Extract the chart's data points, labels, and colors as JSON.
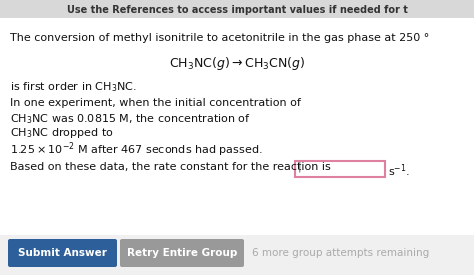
{
  "bg_color": "#ffffff",
  "header_text": "Use the References to access important values if needed for t",
  "header_bg": "#e8e8e8",
  "line1": "The conversion of methyl isonitrile to acetonitrile in the gas phase at 250 °",
  "line3": "is first order in CH₃NC.",
  "line4": "In one experiment, when the initial concentration of",
  "line5": "CH₃NC was 0.0815 M, the concentration of",
  "line6": "CH₃NC dropped to",
  "line7": "1.25 × 10⁻² M after 467 seconds had passed.",
  "line8_pre": "Based on these data, the rate constant for the reaction is ",
  "line8_post": "s⁻¹.",
  "input_box_edge": "#e080a0",
  "input_box_face": "#ffffff",
  "submit_btn_text": "Submit Answer",
  "submit_btn_color": "#2d5f9a",
  "retry_btn_text": "Retry Entire Group",
  "retry_btn_color": "#999999",
  "footer_text": "6 more group attempts remaining",
  "footer_color": "#aaaaaa",
  "text_color": "#111111",
  "font_size": 8.0,
  "font_size_eq": 9.0
}
